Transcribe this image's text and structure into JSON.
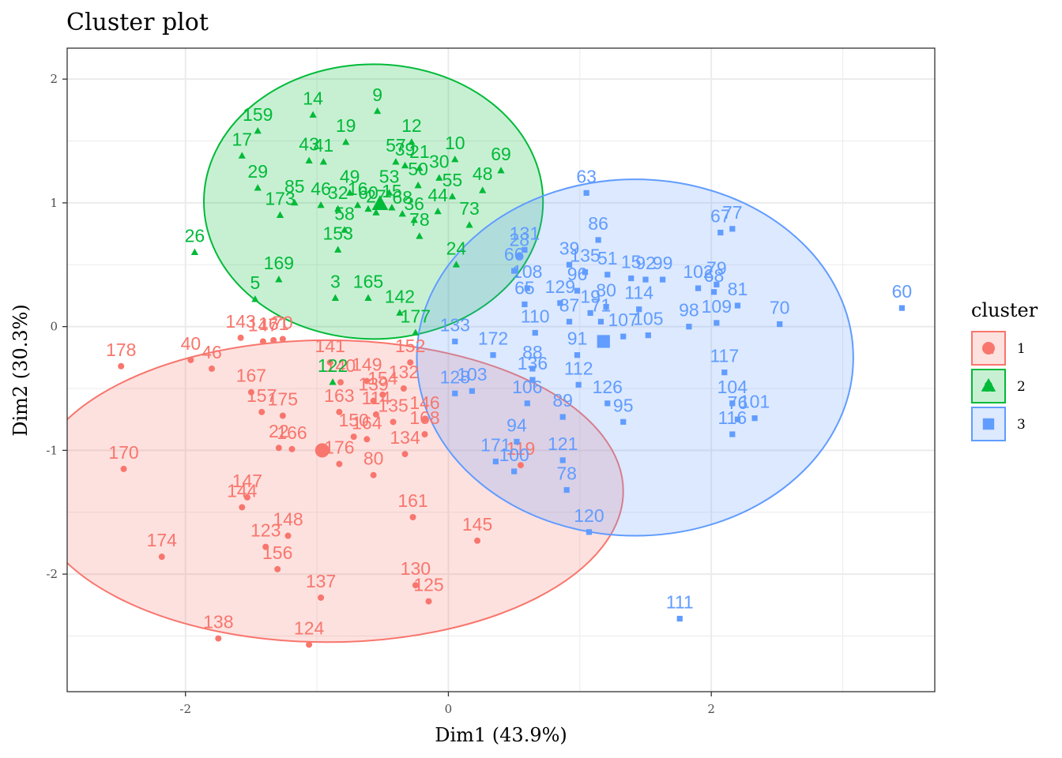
{
  "chart_data": {
    "type": "scatter",
    "title": "Cluster plot",
    "xlabel": "Dim1 (43.9%)",
    "ylabel": "Dim2 (30.3%)",
    "xlim": [
      -2.9,
      3.7
    ],
    "ylim": [
      -2.95,
      2.25
    ],
    "xticks": [
      -2,
      0,
      2
    ],
    "yticks": [
      -2,
      -1,
      0,
      1,
      2
    ],
    "grid": true,
    "legend": {
      "title": "cluster",
      "position": "right",
      "entries": [
        "1",
        "2",
        "3"
      ]
    },
    "colors": {
      "1": "#F8766D",
      "2": "#00BA38",
      "3": "#619CFF"
    },
    "ellipses": [
      {
        "cluster": "1",
        "cx": -0.92,
        "cy": -1.33,
        "rx": 2.25,
        "ry": 1.22
      },
      {
        "cluster": "2",
        "cx": -0.57,
        "cy": 1.01,
        "rx": 1.29,
        "ry": 1.11
      },
      {
        "cluster": "3",
        "cx": 1.42,
        "cy": -0.25,
        "rx": 1.66,
        "ry": 1.44
      }
    ],
    "centroids": [
      {
        "cluster": "1",
        "x": -0.96,
        "y": -1.0
      },
      {
        "cluster": "2",
        "x": -0.52,
        "y": 0.99
      },
      {
        "cluster": "3",
        "x": 1.18,
        "y": -0.12
      }
    ],
    "series": [
      {
        "name": "1",
        "points": [
          {
            "label": "178",
            "x": -2.49,
            "y": -0.32
          },
          {
            "label": "40",
            "x": -1.96,
            "y": -0.27
          },
          {
            "label": "46",
            "x": -1.8,
            "y": -0.34
          },
          {
            "label": "143",
            "x": -1.58,
            "y": -0.09
          },
          {
            "label": "147",
            "x": -1.41,
            "y": -0.12
          },
          {
            "label": "161",
            "x": -1.33,
            "y": -0.11
          },
          {
            "label": "70",
            "x": -1.26,
            "y": -0.1
          },
          {
            "label": "167",
            "x": -1.5,
            "y": -0.53
          },
          {
            "label": "157",
            "x": -1.42,
            "y": -0.69
          },
          {
            "label": "175",
            "x": -1.26,
            "y": -0.72
          },
          {
            "label": "22",
            "x": -1.29,
            "y": -0.98
          },
          {
            "label": "166",
            "x": -1.19,
            "y": -0.99
          },
          {
            "label": "141",
            "x": -0.9,
            "y": -0.29
          },
          {
            "label": "163",
            "x": -0.83,
            "y": -0.69
          },
          {
            "label": "149",
            "x": -0.62,
            "y": -0.44
          },
          {
            "label": "140",
            "x": -0.82,
            "y": -0.45
          },
          {
            "label": "152",
            "x": -0.29,
            "y": -0.29
          },
          {
            "label": "132",
            "x": -0.34,
            "y": -0.5
          },
          {
            "label": "139",
            "x": -0.57,
            "y": -0.6
          },
          {
            "label": "154",
            "x": -0.5,
            "y": -0.55
          },
          {
            "label": "114",
            "x": -0.55,
            "y": -0.71
          },
          {
            "label": "135",
            "x": -0.42,
            "y": -0.77
          },
          {
            "label": "146",
            "x": -0.18,
            "y": -0.75
          },
          {
            "label": "168",
            "x": -0.18,
            "y": -0.87
          },
          {
            "label": "134",
            "x": -0.33,
            "y": -1.03
          },
          {
            "label": "150",
            "x": -0.72,
            "y": -0.89
          },
          {
            "label": "164",
            "x": -0.62,
            "y": -0.91
          },
          {
            "label": "176",
            "x": -0.83,
            "y": -1.11
          },
          {
            "label": "80",
            "x": -0.57,
            "y": -1.2
          },
          {
            "label": "119",
            "x": 0.55,
            "y": -1.12
          },
          {
            "label": "161b",
            "x": -0.27,
            "y": -1.54
          },
          {
            "label": "145",
            "x": 0.22,
            "y": -1.73
          },
          {
            "label": "170",
            "x": -2.47,
            "y": -1.15
          },
          {
            "label": "147b",
            "x": -1.53,
            "y": -1.38
          },
          {
            "label": "144",
            "x": -1.57,
            "y": -1.46
          },
          {
            "label": "148",
            "x": -1.22,
            "y": -1.69
          },
          {
            "label": "123",
            "x": -1.39,
            "y": -1.78
          },
          {
            "label": "156",
            "x": -1.3,
            "y": -1.96
          },
          {
            "label": "174",
            "x": -2.18,
            "y": -1.86
          },
          {
            "label": "137",
            "x": -0.97,
            "y": -2.19
          },
          {
            "label": "130",
            "x": -0.25,
            "y": -2.09
          },
          {
            "label": "125",
            "x": -0.15,
            "y": -2.22
          },
          {
            "label": "138",
            "x": -1.75,
            "y": -2.52
          },
          {
            "label": "124",
            "x": -1.06,
            "y": -2.57
          }
        ]
      },
      {
        "name": "2",
        "points": [
          {
            "label": "9",
            "x": -0.54,
            "y": 1.74
          },
          {
            "label": "14",
            "x": -1.03,
            "y": 1.71
          },
          {
            "label": "159",
            "x": -1.45,
            "y": 1.58
          },
          {
            "label": "17",
            "x": -1.57,
            "y": 1.38
          },
          {
            "label": "19",
            "x": -0.78,
            "y": 1.49
          },
          {
            "label": "43",
            "x": -1.06,
            "y": 1.34
          },
          {
            "label": "41",
            "x": -0.95,
            "y": 1.33
          },
          {
            "label": "12",
            "x": -0.28,
            "y": 1.49
          },
          {
            "label": "57",
            "x": -0.4,
            "y": 1.33
          },
          {
            "label": "39",
            "x": -0.33,
            "y": 1.3
          },
          {
            "label": "21",
            "x": -0.22,
            "y": 1.28
          },
          {
            "label": "10",
            "x": 0.05,
            "y": 1.35
          },
          {
            "label": "69",
            "x": 0.4,
            "y": 1.26
          },
          {
            "label": "29",
            "x": -1.45,
            "y": 1.12
          },
          {
            "label": "30",
            "x": -0.07,
            "y": 1.2
          },
          {
            "label": "50",
            "x": -0.23,
            "y": 1.14
          },
          {
            "label": "48",
            "x": 0.26,
            "y": 1.1
          },
          {
            "label": "85",
            "x": -1.17,
            "y": 1.0
          },
          {
            "label": "46b",
            "x": -0.97,
            "y": 0.98
          },
          {
            "label": "49",
            "x": -0.75,
            "y": 1.08
          },
          {
            "label": "53",
            "x": -0.45,
            "y": 1.08
          },
          {
            "label": "55",
            "x": 0.03,
            "y": 1.05
          },
          {
            "label": "32",
            "x": -0.84,
            "y": 0.95
          },
          {
            "label": "16",
            "x": -0.69,
            "y": 0.98
          },
          {
            "label": "60b",
            "x": -0.61,
            "y": 0.95
          },
          {
            "label": "27",
            "x": -0.55,
            "y": 0.92
          },
          {
            "label": "15",
            "x": -0.43,
            "y": 0.96
          },
          {
            "label": "68",
            "x": -0.35,
            "y": 0.91
          },
          {
            "label": "44",
            "x": -0.08,
            "y": 0.93
          },
          {
            "label": "173",
            "x": -1.28,
            "y": 0.9
          },
          {
            "label": "36",
            "x": -0.26,
            "y": 0.86
          },
          {
            "label": "73",
            "x": 0.16,
            "y": 0.82
          },
          {
            "label": "58",
            "x": -0.79,
            "y": 0.78
          },
          {
            "label": "78",
            "x": -0.22,
            "y": 0.73
          },
          {
            "label": "153",
            "x": -0.84,
            "y": 0.62
          },
          {
            "label": "26",
            "x": -1.93,
            "y": 0.6
          },
          {
            "label": "24",
            "x": 0.06,
            "y": 0.5
          },
          {
            "label": "169",
            "x": -1.29,
            "y": 0.38
          },
          {
            "label": "5",
            "x": -1.47,
            "y": 0.22
          },
          {
            "label": "3",
            "x": -0.86,
            "y": 0.23
          },
          {
            "label": "165",
            "x": -0.61,
            "y": 0.23
          },
          {
            "label": "142",
            "x": -0.37,
            "y": 0.11
          },
          {
            "label": "177",
            "x": -0.25,
            "y": -0.05
          },
          {
            "label": "122",
            "x": -0.88,
            "y": -0.45
          }
        ]
      },
      {
        "name": "3",
        "points": [
          {
            "label": "63",
            "x": 1.05,
            "y": 1.08
          },
          {
            "label": "67",
            "x": 2.07,
            "y": 0.76
          },
          {
            "label": "77",
            "x": 2.16,
            "y": 0.79
          },
          {
            "label": "86",
            "x": 1.14,
            "y": 0.7
          },
          {
            "label": "131",
            "x": 0.58,
            "y": 0.62
          },
          {
            "label": "28",
            "x": 0.54,
            "y": 0.57
          },
          {
            "label": "39b",
            "x": 0.92,
            "y": 0.5
          },
          {
            "label": "66",
            "x": 0.5,
            "y": 0.45
          },
          {
            "label": "135",
            "x": 1.04,
            "y": 0.44
          },
          {
            "label": "51",
            "x": 1.21,
            "y": 0.42
          },
          {
            "label": "15b",
            "x": 1.39,
            "y": 0.39
          },
          {
            "label": "92",
            "x": 1.5,
            "y": 0.38
          },
          {
            "label": "99",
            "x": 1.63,
            "y": 0.38
          },
          {
            "label": "79",
            "x": 2.04,
            "y": 0.34
          },
          {
            "label": "102",
            "x": 1.9,
            "y": 0.31
          },
          {
            "label": "68b",
            "x": 2.02,
            "y": 0.28
          },
          {
            "label": "81",
            "x": 2.2,
            "y": 0.17
          },
          {
            "label": "108",
            "x": 0.6,
            "y": 0.31
          },
          {
            "label": "96",
            "x": 0.98,
            "y": 0.29
          },
          {
            "label": "65",
            "x": 0.58,
            "y": 0.18
          },
          {
            "label": "114b",
            "x": 1.45,
            "y": 0.14
          },
          {
            "label": "98",
            "x": 1.83,
            "y": 0.0
          },
          {
            "label": "109",
            "x": 2.04,
            "y": 0.03
          },
          {
            "label": "70b",
            "x": 2.52,
            "y": 0.02
          },
          {
            "label": "60",
            "x": 3.45,
            "y": 0.15
          },
          {
            "label": "129",
            "x": 0.85,
            "y": 0.19
          },
          {
            "label": "80b",
            "x": 1.2,
            "y": 0.16
          },
          {
            "label": "19b",
            "x": 1.08,
            "y": 0.11
          },
          {
            "label": "87",
            "x": 0.92,
            "y": 0.04
          },
          {
            "label": "71",
            "x": 1.16,
            "y": 0.04
          },
          {
            "label": "105",
            "x": 1.52,
            "y": -0.07
          },
          {
            "label": "107",
            "x": 1.33,
            "y": -0.08
          },
          {
            "label": "110",
            "x": 0.66,
            "y": -0.05
          },
          {
            "label": "133",
            "x": 0.05,
            "y": -0.12
          },
          {
            "label": "172",
            "x": 0.34,
            "y": -0.23
          },
          {
            "label": "91",
            "x": 0.98,
            "y": -0.23
          },
          {
            "label": "88",
            "x": 0.64,
            "y": -0.34
          },
          {
            "label": "136",
            "x": 0.64,
            "y": -0.43
          },
          {
            "label": "112",
            "x": 0.99,
            "y": -0.47
          },
          {
            "label": "117",
            "x": 2.1,
            "y": -0.37
          },
          {
            "label": "103",
            "x": 0.18,
            "y": -0.52
          },
          {
            "label": "128",
            "x": 0.05,
            "y": -0.54
          },
          {
            "label": "106",
            "x": 0.6,
            "y": -0.62
          },
          {
            "label": "89",
            "x": 0.87,
            "y": -0.73
          },
          {
            "label": "126",
            "x": 1.21,
            "y": -0.62
          },
          {
            "label": "95",
            "x": 1.33,
            "y": -0.77
          },
          {
            "label": "104",
            "x": 2.16,
            "y": -0.62
          },
          {
            "label": "101",
            "x": 2.33,
            "y": -0.74
          },
          {
            "label": "76",
            "x": 2.2,
            "y": -0.75
          },
          {
            "label": "116",
            "x": 2.16,
            "y": -0.87
          },
          {
            "label": "94",
            "x": 0.52,
            "y": -0.93
          },
          {
            "label": "171",
            "x": 0.36,
            "y": -1.09
          },
          {
            "label": "100",
            "x": 0.5,
            "y": -1.17
          },
          {
            "label": "121",
            "x": 0.87,
            "y": -1.08
          },
          {
            "label": "78b",
            "x": 0.9,
            "y": -1.32
          },
          {
            "label": "120",
            "x": 1.07,
            "y": -1.66
          },
          {
            "label": "111",
            "x": 1.76,
            "y": -2.36
          }
        ]
      }
    ]
  }
}
